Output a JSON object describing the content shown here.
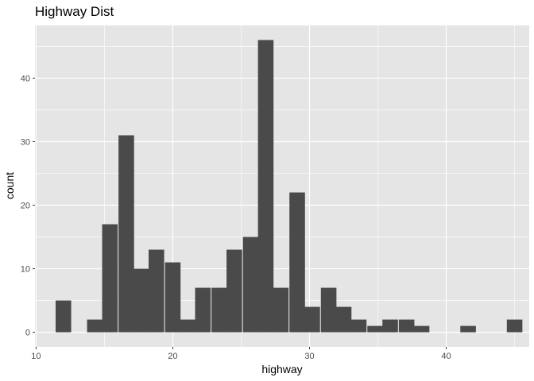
{
  "chart_data": {
    "type": "bar",
    "title": "Highway Dist",
    "xlabel": "highway",
    "ylabel": "count",
    "bin_width": 1.138,
    "bins": [
      {
        "x": 12.0,
        "count": 5
      },
      {
        "x": 13.1,
        "count": 0
      },
      {
        "x": 14.3,
        "count": 2
      },
      {
        "x": 15.4,
        "count": 17
      },
      {
        "x": 16.6,
        "count": 31
      },
      {
        "x": 17.7,
        "count": 10
      },
      {
        "x": 18.8,
        "count": 13
      },
      {
        "x": 20.0,
        "count": 11
      },
      {
        "x": 21.1,
        "count": 2
      },
      {
        "x": 22.2,
        "count": 7
      },
      {
        "x": 23.4,
        "count": 7
      },
      {
        "x": 24.5,
        "count": 13
      },
      {
        "x": 25.7,
        "count": 15
      },
      {
        "x": 26.8,
        "count": 46
      },
      {
        "x": 27.9,
        "count": 7
      },
      {
        "x": 29.1,
        "count": 22
      },
      {
        "x": 30.2,
        "count": 4
      },
      {
        "x": 31.4,
        "count": 7
      },
      {
        "x": 32.5,
        "count": 4
      },
      {
        "x": 33.6,
        "count": 2
      },
      {
        "x": 34.8,
        "count": 1
      },
      {
        "x": 35.9,
        "count": 2
      },
      {
        "x": 37.1,
        "count": 2
      },
      {
        "x": 38.2,
        "count": 1
      },
      {
        "x": 39.3,
        "count": 0
      },
      {
        "x": 40.5,
        "count": 0
      },
      {
        "x": 41.6,
        "count": 1
      },
      {
        "x": 42.8,
        "count": 0
      },
      {
        "x": 43.9,
        "count": 0
      },
      {
        "x": 45.0,
        "count": 2
      }
    ],
    "xlim": [
      9.92,
      46.07
    ],
    "ylim": [
      -2.3,
      48.3
    ],
    "x_ticks": [
      10,
      20,
      30,
      40
    ],
    "y_ticks": [
      0,
      10,
      20,
      30,
      40
    ],
    "grid": true,
    "colors": {
      "panel_background": "#e5e5e5",
      "grid_major": "#ffffff",
      "bar_fill": "#4a4a4a",
      "tick_label": "#4d4d4d"
    }
  }
}
